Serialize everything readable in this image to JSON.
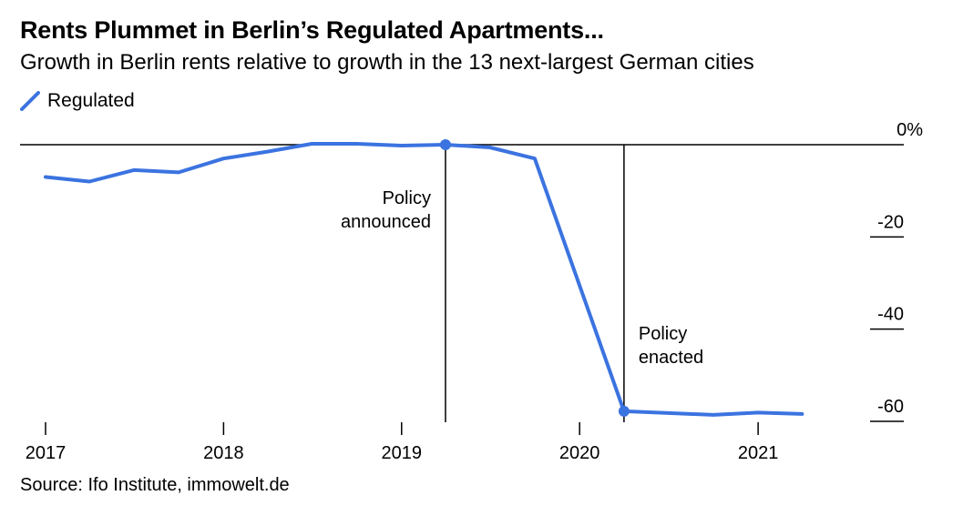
{
  "title": "Rents Plummet in Berlin’s Regulated Apartments...",
  "subtitle": "Growth in Berlin rents relative to growth in the 13 next-largest German cities",
  "source": "Source: Ifo Institute, immowelt.de",
  "colors": {
    "series": "#3b73e0",
    "axis": "#000000"
  },
  "chart_data": {
    "type": "line",
    "x_type": "date",
    "xlim": [
      "2017-01-01",
      "2021-07-01"
    ],
    "ylim": [
      -62,
      0
    ],
    "y_ticks": [
      {
        "value": 0,
        "label": "0%"
      },
      {
        "value": -20,
        "label": "-20"
      },
      {
        "value": -40,
        "label": "-40"
      },
      {
        "value": -60,
        "label": "-60"
      }
    ],
    "x_ticks": [
      {
        "value": "2017-01-01",
        "label": "2017"
      },
      {
        "value": "2018-01-01",
        "label": "2018"
      },
      {
        "value": "2019-01-01",
        "label": "2019"
      },
      {
        "value": "2020-01-01",
        "label": "2020"
      },
      {
        "value": "2021-01-01",
        "label": "2021"
      }
    ],
    "legend": {
      "position": "top-left"
    },
    "grid": false,
    "series": [
      {
        "name": "Regulated",
        "color": "#3b73e0",
        "points": [
          {
            "x": "2017-01-01",
            "y": -7
          },
          {
            "x": "2017-04-01",
            "y": -8
          },
          {
            "x": "2017-07-01",
            "y": -5.5
          },
          {
            "x": "2017-10-01",
            "y": -6
          },
          {
            "x": "2018-01-01",
            "y": -3
          },
          {
            "x": "2018-04-01",
            "y": -1.5
          },
          {
            "x": "2018-07-01",
            "y": 0.2
          },
          {
            "x": "2018-10-01",
            "y": 0.2
          },
          {
            "x": "2019-01-01",
            "y": -0.2
          },
          {
            "x": "2019-04-01",
            "y": 0
          },
          {
            "x": "2019-07-01",
            "y": -0.6
          },
          {
            "x": "2019-10-01",
            "y": -3
          },
          {
            "x": "2020-04-01",
            "y": -57.8
          },
          {
            "x": "2020-07-01",
            "y": -58.2
          },
          {
            "x": "2020-10-01",
            "y": -58.6
          },
          {
            "x": "2021-01-01",
            "y": -58.1
          },
          {
            "x": "2021-04-01",
            "y": -58.4
          }
        ],
        "markers": [
          "2019-04-01",
          "2020-04-01"
        ]
      }
    ],
    "annotations": [
      {
        "x": "2019-04-01",
        "lines": [
          "Policy",
          "announced"
        ],
        "anchor": "left"
      },
      {
        "x": "2020-04-01",
        "lines": [
          "Policy",
          "enacted"
        ],
        "anchor": "right"
      }
    ]
  }
}
